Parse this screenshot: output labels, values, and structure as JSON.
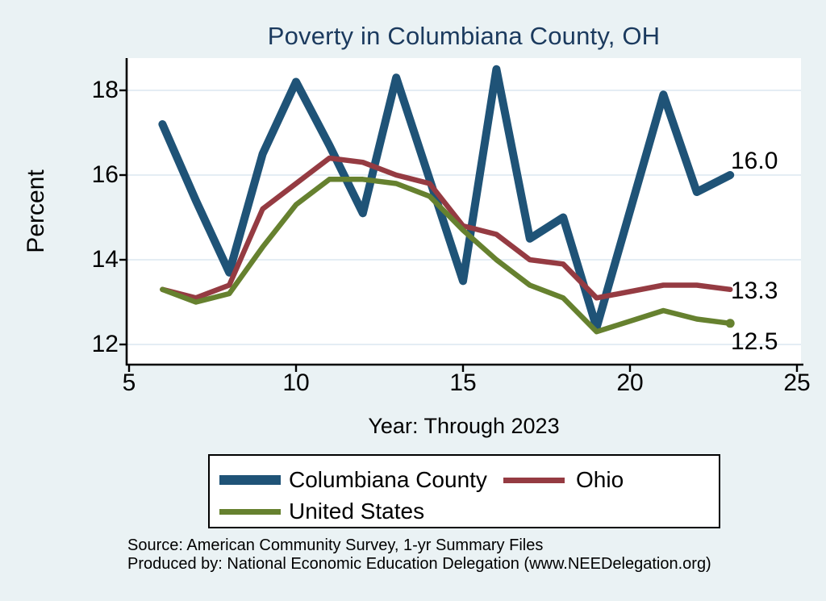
{
  "colors": {
    "page_background": "#eaf2f4",
    "plot_background": "#ffffff",
    "gridline": "#dbe7f0",
    "axis": "#000000",
    "title": "#1b3a5e",
    "county_blue": "#1f5377",
    "ohio_red": "#953b42",
    "us_green": "#66812f"
  },
  "title": {
    "text": "Poverty in Columbiana County, OH"
  },
  "chart_data": {
    "type": "line",
    "title": "Poverty in Columbiana County, OH",
    "xlabel": "Year: Through 2023",
    "ylabel": "Percent",
    "xlim": [
      5,
      25
    ],
    "ylim": [
      11.5,
      18.8
    ],
    "x_ticks": [
      5,
      10,
      15,
      20,
      25
    ],
    "y_ticks": [
      18,
      16,
      14,
      12
    ],
    "grid": true,
    "legend_position": "bottom",
    "x": [
      6,
      7,
      8,
      9,
      10,
      11,
      12,
      13,
      14,
      15,
      16,
      17,
      18,
      19,
      21,
      22,
      23
    ],
    "series": [
      {
        "name": "Columbiana County",
        "color": "#1f5377",
        "stroke_width": 10,
        "end_label": "16.0",
        "end_marker": false,
        "values": [
          17.2,
          15.4,
          13.7,
          16.5,
          18.2,
          16.7,
          15.1,
          18.3,
          15.9,
          13.5,
          18.5,
          14.5,
          15.0,
          12.4,
          17.9,
          15.6,
          16.0
        ]
      },
      {
        "name": "Ohio",
        "color": "#953b42",
        "stroke_width": 6.5,
        "end_label": "13.3",
        "end_marker": false,
        "values": [
          13.3,
          13.1,
          13.4,
          15.2,
          15.8,
          16.4,
          16.3,
          16.0,
          15.8,
          14.8,
          14.6,
          14.0,
          13.9,
          13.1,
          13.4,
          13.4,
          13.3
        ]
      },
      {
        "name": "United States",
        "color": "#66812f",
        "stroke_width": 6.5,
        "end_label": "12.5",
        "end_marker": true,
        "values": [
          13.3,
          13.0,
          13.2,
          14.3,
          15.3,
          15.9,
          15.9,
          15.8,
          15.5,
          14.7,
          14.0,
          13.4,
          13.1,
          12.3,
          12.8,
          12.6,
          12.5
        ]
      }
    ]
  },
  "legend": {
    "items": [
      {
        "label": "Columbiana County"
      },
      {
        "label": "Ohio"
      },
      {
        "label": "United States"
      }
    ]
  },
  "footer": {
    "line1": "Source: American Community Survey, 1-yr Summary Files",
    "line2": "Produced by: National Economic Education Delegation (www.NEEDelegation.org)"
  }
}
